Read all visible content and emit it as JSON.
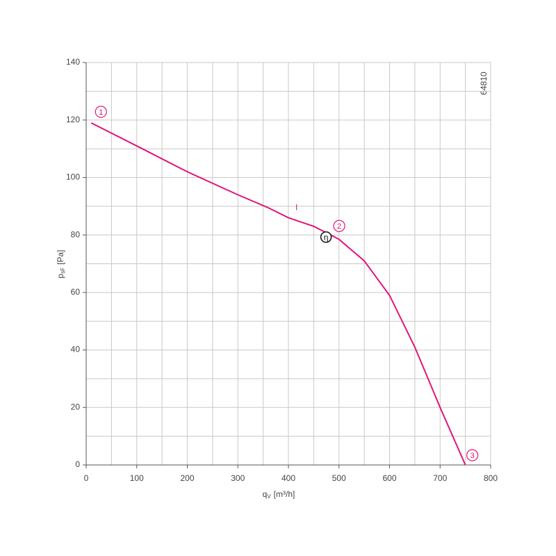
{
  "chart_data": {
    "type": "line",
    "xlabel": {
      "main": "q",
      "sub": "V",
      "unit": "[m³/h]"
    },
    "ylabel": {
      "main": "p",
      "sub": "sF",
      "unit": "[Pa]"
    },
    "code": "64810",
    "x": [
      10,
      100,
      200,
      300,
      360,
      400,
      450,
      484,
      500,
      550,
      600,
      650,
      700,
      750
    ],
    "series": [
      {
        "name": "I",
        "color": "#e0147a",
        "values": [
          119,
          111,
          102,
          94,
          89.5,
          86,
          83,
          80,
          78.5,
          71,
          59,
          41,
          20,
          0
        ]
      }
    ],
    "points": [
      {
        "label": "1",
        "x": 10,
        "y": 119
      },
      {
        "label": "2",
        "x": 484,
        "y": 80
      },
      {
        "label": "3",
        "x": 750,
        "y": 0
      }
    ],
    "efficiency_point": {
      "label": "η",
      "x": 484,
      "y": 80
    },
    "xlim": [
      0,
      800
    ],
    "ylim": [
      0,
      140
    ],
    "xticks": [
      0,
      100,
      200,
      300,
      400,
      500,
      600,
      700,
      800
    ],
    "yticks": [
      0,
      20,
      40,
      60,
      80,
      100,
      120,
      140
    ],
    "xminorticks": [
      50,
      150,
      250,
      350,
      450,
      550,
      650,
      750
    ],
    "yminorticks": [
      10,
      30,
      50,
      70,
      90,
      110,
      130
    ],
    "grid": true
  }
}
